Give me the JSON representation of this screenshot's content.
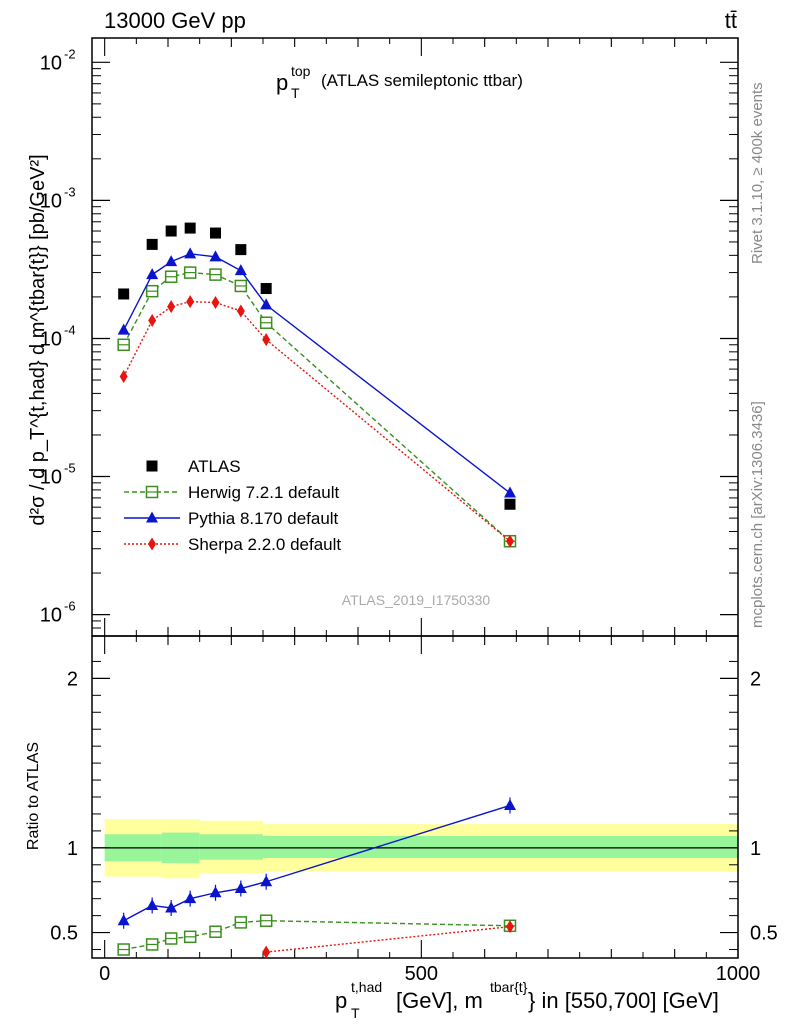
{
  "header": {
    "energy_label": "13000 GeV pp",
    "process_label": "tt̄"
  },
  "side_labels": {
    "rivet": "Rivet 3.1.10, ≥ 400k events",
    "mcplots": "mcplots.cern.ch [arXiv:1306.3436]"
  },
  "watermark": "ATLAS_2019_I1750330",
  "plot_title": {
    "main": "p",
    "sup": "top",
    "sub": "T",
    "rest": "(ATLAS semileptonic ttbar)"
  },
  "y_axis_label": "d²σ / d p_T^{t,had} d m^{tbar{t}} [pb/GeV²]",
  "ratio_y_label": "Ratio to ATLAS",
  "x_axis_label": {
    "p": "p",
    "p_sup": "t,had",
    "p_sub": "T",
    "mid": "[GeV], m",
    "m_sup": "tbar{t}",
    "end": "} in [550,700] [GeV]"
  },
  "colors": {
    "data": "#000000",
    "herwig": "#3a8f1e",
    "pythia": "#0a14cc",
    "sherpa": "#e8140e",
    "band_inner": "#99f599",
    "band_outer": "#ffff9e"
  },
  "chart_data": [
    {
      "type": "scatter",
      "title": "pT top (ATLAS semileptonic ttbar)",
      "ylabel": "d²σ / d pT d m [pb/GeV²]",
      "yscale": "log",
      "xlim": [
        -20,
        1000
      ],
      "ylim": [
        7e-07,
        0.015
      ],
      "y_ticks": [
        "10^-6",
        "10^-5",
        "10^-4",
        "10^-3",
        "10^-2"
      ],
      "x": [
        30,
        75,
        105,
        135,
        175,
        215,
        255,
        640
      ],
      "series": [
        {
          "name": "ATLAS",
          "key": "data",
          "marker": "square-filled",
          "values": [
            0.00021,
            0.00048,
            0.0006,
            0.00063,
            0.00058,
            0.00044,
            0.00023,
            6.3e-06
          ]
        },
        {
          "name": "Herwig 7.2.1 default",
          "key": "herwig",
          "marker": "square-open",
          "line": "dashed",
          "values": [
            9e-05,
            0.00022,
            0.00028,
            0.0003,
            0.00029,
            0.00024,
            0.00013,
            3.4e-06
          ]
        },
        {
          "name": "Pythia 8.170 default",
          "key": "pythia",
          "marker": "triangle",
          "line": "solid",
          "values": [
            0.000115,
            0.00029,
            0.00036,
            0.00041,
            0.00039,
            0.00031,
            0.000175,
            7.6e-06
          ]
        },
        {
          "name": "Sherpa 2.2.0 default",
          "key": "sherpa",
          "marker": "diamond",
          "line": "dotted",
          "values": [
            5.3e-05,
            0.000135,
            0.00017,
            0.000185,
            0.000182,
            0.000158,
            9.8e-05,
            3.4e-06
          ]
        }
      ]
    },
    {
      "type": "scatter",
      "ylabel": "Ratio to ATLAS",
      "xlim": [
        -20,
        1000
      ],
      "ylim": [
        0.35,
        2.25
      ],
      "y_ticks": [
        "0.5",
        "1",
        "2"
      ],
      "x_ticks": [
        "0",
        "500",
        "1000"
      ],
      "x": [
        30,
        75,
        105,
        135,
        175,
        215,
        255,
        640
      ],
      "band_edges": [
        0,
        90,
        150,
        250,
        1000
      ],
      "band_inner": [
        [
          0.92,
          1.08
        ],
        [
          0.91,
          1.09
        ],
        [
          0.93,
          1.08
        ],
        [
          0.94,
          1.07
        ],
        [
          0.94,
          1.06
        ]
      ],
      "band_outer": [
        [
          0.83,
          1.17
        ],
        [
          0.82,
          1.17
        ],
        [
          0.85,
          1.16
        ],
        [
          0.86,
          1.14
        ],
        [
          0.87,
          1.13
        ]
      ],
      "series": [
        {
          "name": "Herwig 7.2.1 default",
          "key": "herwig",
          "values": [
            0.4,
            0.43,
            0.465,
            0.475,
            0.505,
            0.56,
            0.57,
            0.54
          ]
        },
        {
          "name": "Pythia 8.170 default",
          "key": "pythia",
          "values": [
            0.57,
            0.66,
            0.645,
            0.7,
            0.735,
            0.76,
            0.8,
            1.25
          ]
        },
        {
          "name": "Sherpa 2.2.0 default",
          "key": "sherpa",
          "values": [
            null,
            null,
            null,
            null,
            null,
            null,
            0.385,
            0.535
          ]
        }
      ]
    }
  ]
}
